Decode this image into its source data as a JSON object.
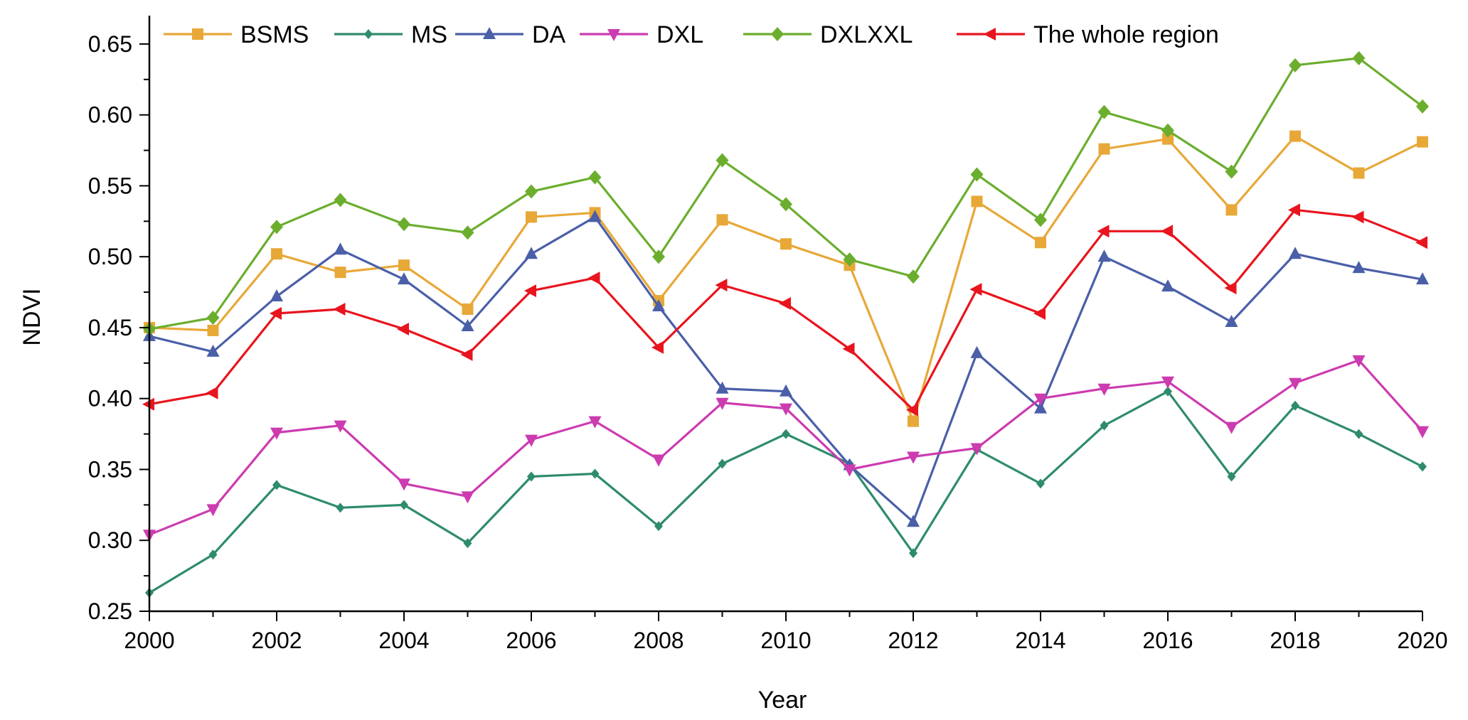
{
  "chart_data": {
    "type": "line",
    "title": "",
    "xlabel": "Year",
    "ylabel": "NDVI",
    "xlim": [
      2000,
      2020
    ],
    "ylim": [
      0.25,
      0.67
    ],
    "xticks": [
      2000,
      2002,
      2004,
      2006,
      2008,
      2010,
      2012,
      2014,
      2016,
      2018,
      2020
    ],
    "xtick_labels": [
      "2000",
      "2002",
      "2004",
      "2006",
      "2008",
      "2010",
      "2012",
      "2014",
      "2016",
      "2018",
      "2020"
    ],
    "yticks": [
      0.25,
      0.3,
      0.35,
      0.4,
      0.45,
      0.5,
      0.55,
      0.6,
      0.65
    ],
    "ytick_labels": [
      "0.25",
      "0.30",
      "0.35",
      "0.40",
      "0.45",
      "0.50",
      "0.55",
      "0.60",
      "0.65"
    ],
    "grid": false,
    "legend_position": "top",
    "x": [
      2000,
      2001,
      2002,
      2003,
      2004,
      2005,
      2006,
      2007,
      2008,
      2009,
      2010,
      2011,
      2012,
      2013,
      2014,
      2015,
      2016,
      2017,
      2018,
      2019,
      2020
    ],
    "series": [
      {
        "name": "BSMS",
        "color": "#E8A838",
        "marker": "square",
        "values": [
          0.45,
          0.448,
          0.502,
          0.489,
          0.494,
          0.463,
          0.528,
          0.531,
          0.469,
          0.526,
          0.509,
          0.494,
          0.384,
          0.539,
          0.51,
          0.576,
          0.583,
          0.533,
          0.585,
          0.559,
          0.581
        ]
      },
      {
        "name": "MS",
        "color": "#2E8B6E",
        "marker": "diamond-small",
        "values": [
          0.263,
          0.29,
          0.339,
          0.323,
          0.325,
          0.298,
          0.345,
          0.347,
          0.31,
          0.354,
          0.375,
          0.354,
          0.291,
          0.364,
          0.34,
          0.381,
          0.405,
          0.345,
          0.395,
          0.375,
          0.352
        ]
      },
      {
        "name": "DA",
        "color": "#4A5FA8",
        "marker": "triangle-up",
        "values": [
          0.444,
          0.433,
          0.472,
          0.505,
          0.484,
          0.451,
          0.502,
          0.528,
          0.465,
          0.407,
          0.405,
          0.353,
          0.313,
          0.432,
          0.393,
          0.5,
          0.479,
          0.454,
          0.502,
          0.492,
          0.484
        ]
      },
      {
        "name": "DXL",
        "color": "#CC3BB0",
        "marker": "triangle-down",
        "values": [
          0.304,
          0.322,
          0.376,
          0.381,
          0.34,
          0.331,
          0.371,
          0.384,
          0.357,
          0.397,
          0.393,
          0.35,
          0.359,
          0.365,
          0.4,
          0.407,
          0.412,
          0.38,
          0.411,
          0.427,
          0.377
        ]
      },
      {
        "name": "DXLXXL",
        "color": "#6BAE2E",
        "marker": "diamond",
        "values": [
          0.449,
          0.457,
          0.521,
          0.54,
          0.523,
          0.517,
          0.546,
          0.556,
          0.5,
          0.568,
          0.537,
          0.498,
          0.486,
          0.558,
          0.526,
          0.602,
          0.589,
          0.56,
          0.635,
          0.64,
          0.606
        ]
      },
      {
        "name": "The whole region",
        "color": "#E8141E",
        "marker": "triangle-left",
        "values": [
          0.396,
          0.404,
          0.46,
          0.463,
          0.449,
          0.431,
          0.476,
          0.485,
          0.436,
          0.48,
          0.467,
          0.435,
          0.392,
          0.477,
          0.46,
          0.518,
          0.518,
          0.478,
          0.533,
          0.528,
          0.51
        ]
      }
    ]
  }
}
